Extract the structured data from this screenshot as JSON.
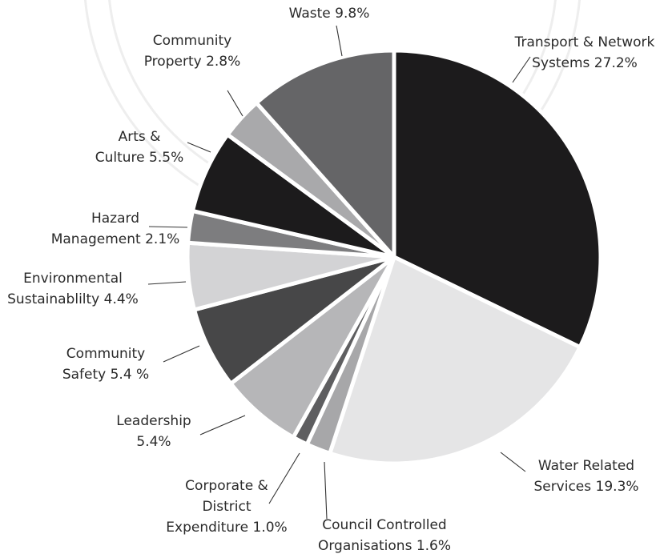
{
  "chart_data": {
    "type": "pie",
    "start_angle_deg": 0,
    "direction": "clockwise",
    "slices": [
      {
        "label": [
          "Transport & Network",
          "Systems 27.2%"
        ],
        "value": 27.2,
        "color": "#1c1b1c"
      },
      {
        "label": [
          "Water Related",
          "Services 19.3%"
        ],
        "value": 19.3,
        "color": "#e5e5e6"
      },
      {
        "label": [
          "Council Controlled",
          "Organisations 1.6%"
        ],
        "value": 1.6,
        "color": "#a7a7a9"
      },
      {
        "label": [
          "Corporate &",
          "District",
          "Expenditure 1.0%"
        ],
        "value": 1.0,
        "color": "#5e5e60"
      },
      {
        "label": [
          "Leadership",
          "5.4%"
        ],
        "value": 5.4,
        "color": "#b6b6b8"
      },
      {
        "label": [
          "Community",
          "Safety 5.4 %"
        ],
        "value": 5.4,
        "color": "#474748"
      },
      {
        "label": [
          "Environmental",
          "Sustainablilty 4.4%"
        ],
        "value": 4.4,
        "color": "#d3d3d5"
      },
      {
        "label": [
          "Hazard",
          "Management 2.1%"
        ],
        "value": 2.1,
        "color": "#7d7d7f"
      },
      {
        "label": [
          "Arts &",
          "Culture 5.5%"
        ],
        "value": 5.5,
        "color": "#1c1b1c"
      },
      {
        "label": [
          "Community",
          "Property 2.8%"
        ],
        "value": 2.8,
        "color": "#a9a9ab"
      },
      {
        "label": [
          "Waste 9.8%"
        ],
        "value": 9.8,
        "color": "#656567"
      }
    ]
  }
}
